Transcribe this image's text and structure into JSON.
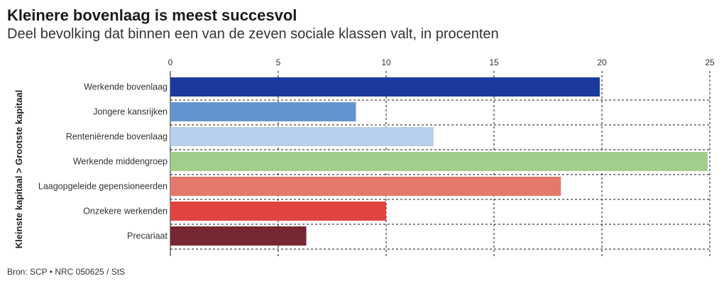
{
  "title": "Kleinere bovenlaag is meest succesvol",
  "subtitle": "Deel bevolking dat binnen een van de zeven sociale klassen valt, in procenten",
  "source": "Bron: SCP • NRC 050625 / StS",
  "chart_data": {
    "type": "bar",
    "orientation": "horizontal",
    "ylabel": "Kleinste kapitaal > Grootste kapitaal",
    "xlabel": "",
    "xlim": [
      0,
      25
    ],
    "xticks": [
      0,
      5,
      10,
      15,
      20,
      25
    ],
    "grid": true,
    "categories": [
      "Werkende bovenlaag",
      "Jongere kansrijken",
      "Renteniërende bovenlaag",
      "Werkende middengroep",
      "Laagopgeleide gepensioneerden",
      "Onzekere werkenden",
      "Precariaat"
    ],
    "values": [
      19.9,
      8.6,
      12.2,
      24.9,
      18.1,
      10.0,
      6.3
    ],
    "colors": [
      "#1b3a9e",
      "#6494cf",
      "#b7cfee",
      "#a2ce8c",
      "#e6776b",
      "#e04440",
      "#762731"
    ]
  }
}
